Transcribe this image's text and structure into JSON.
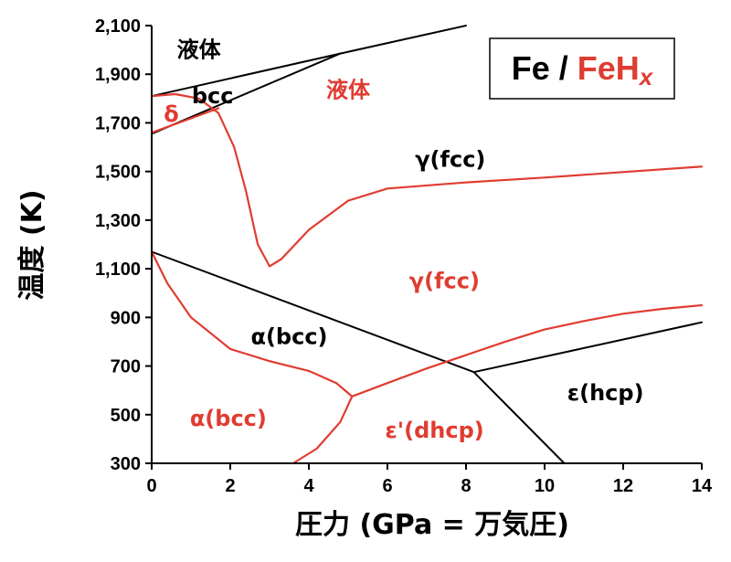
{
  "chart_data": {
    "type": "line",
    "title": "",
    "xlabel": "圧力 (GPa = 万気圧)",
    "ylabel": "温度 (K)",
    "xlim": [
      0,
      14
    ],
    "ylim": [
      300,
      2100
    ],
    "xticks": [
      0,
      2,
      4,
      6,
      8,
      10,
      12,
      14
    ],
    "yticks": [
      300,
      500,
      700,
      900,
      1100,
      1300,
      1500,
      1700,
      1900,
      2100
    ],
    "yticklabels": [
      "300",
      "500",
      "700",
      "900",
      "1,100",
      "1,300",
      "1,500",
      "1,700",
      "1,900",
      "2,100"
    ],
    "grid": false,
    "legend_box": {
      "part1": "Fe / ",
      "part2": "FeH",
      "part3": "x",
      "color1": "#000000",
      "color2": "#e03c31"
    },
    "colors": {
      "fe": "#000000",
      "feh": "#e03c31"
    },
    "series": [
      {
        "group": "fe",
        "points": [
          [
            0,
            1810
          ],
          [
            4.8,
            1985
          ],
          [
            8,
            2100
          ]
        ]
      },
      {
        "group": "fe",
        "points": [
          [
            0,
            1655
          ],
          [
            4.8,
            1985
          ]
        ]
      },
      {
        "group": "fe",
        "points": [
          [
            0,
            1170
          ],
          [
            8.2,
            675
          ],
          [
            14,
            880
          ]
        ]
      },
      {
        "group": "fe",
        "points": [
          [
            8.2,
            675
          ],
          [
            10.5,
            300
          ]
        ]
      },
      {
        "group": "feh",
        "points": [
          [
            0,
            1810
          ],
          [
            0.6,
            1818
          ],
          [
            1.2,
            1800
          ],
          [
            1.7,
            1740
          ],
          [
            2.1,
            1600
          ],
          [
            2.4,
            1420
          ],
          [
            2.7,
            1200
          ],
          [
            3.0,
            1110
          ],
          [
            3.3,
            1140
          ],
          [
            4.0,
            1260
          ],
          [
            5.0,
            1380
          ],
          [
            6.0,
            1430
          ],
          [
            8.0,
            1455
          ],
          [
            10.0,
            1475
          ],
          [
            14.0,
            1520
          ]
        ]
      },
      {
        "group": "feh",
        "points": [
          [
            0,
            1660
          ],
          [
            1.7,
            1760
          ]
        ]
      },
      {
        "group": "feh",
        "points": [
          [
            0,
            1170
          ],
          [
            0.4,
            1040
          ],
          [
            1.0,
            900
          ],
          [
            2.0,
            770
          ],
          [
            3.0,
            720
          ],
          [
            4.0,
            680
          ],
          [
            4.7,
            630
          ],
          [
            5.1,
            575
          ]
        ]
      },
      {
        "group": "feh",
        "points": [
          [
            3.6,
            300
          ],
          [
            4.2,
            360
          ],
          [
            4.8,
            470
          ],
          [
            5.1,
            575
          ]
        ]
      },
      {
        "group": "feh",
        "points": [
          [
            5.1,
            575
          ],
          [
            6.0,
            630
          ],
          [
            7.0,
            690
          ],
          [
            8.0,
            745
          ],
          [
            9.0,
            800
          ],
          [
            10.0,
            850
          ],
          [
            11.0,
            885
          ],
          [
            12.0,
            915
          ],
          [
            13.0,
            935
          ],
          [
            14.0,
            950
          ]
        ]
      }
    ],
    "annotations": [
      {
        "text": "液体",
        "x": 1.2,
        "y": 2000,
        "group": "fe"
      },
      {
        "text": "bcc",
        "x": 1.55,
        "y": 1810,
        "group": "fe"
      },
      {
        "text": "δ",
        "x": 0.5,
        "y": 1735,
        "group": "feh"
      },
      {
        "text": "液体",
        "x": 5.0,
        "y": 1835,
        "group": "feh"
      },
      {
        "text": "γ(fcc)",
        "x": 7.6,
        "y": 1550,
        "group": "fe"
      },
      {
        "text": "γ(fcc)",
        "x": 7.45,
        "y": 1050,
        "group": "feh"
      },
      {
        "text": "α(bcc)",
        "x": 3.5,
        "y": 820,
        "group": "fe"
      },
      {
        "text": "α(bcc)",
        "x": 1.95,
        "y": 485,
        "group": "feh"
      },
      {
        "text": "ε'(dhcp)",
        "x": 7.2,
        "y": 435,
        "group": "feh"
      },
      {
        "text": "ε(hcp)",
        "x": 11.55,
        "y": 590,
        "group": "fe"
      }
    ]
  }
}
